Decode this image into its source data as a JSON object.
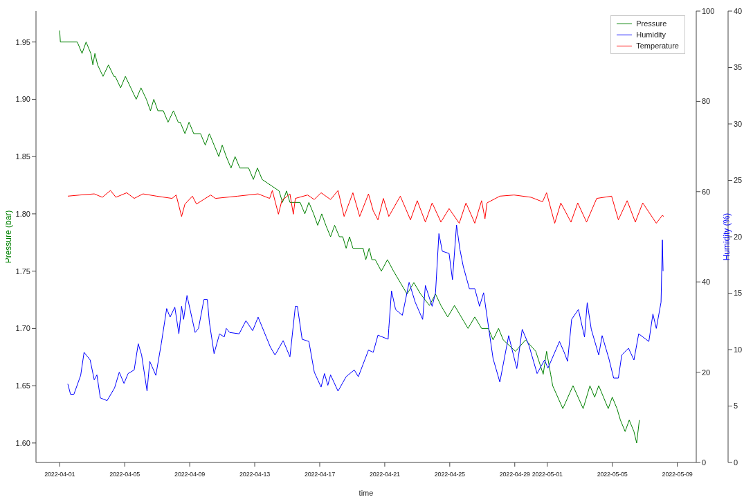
{
  "chart_data": {
    "type": "line",
    "xlabel": "time",
    "ylabel": "Pressure (bar)",
    "y2label": "Humidity (%)",
    "xlim": [
      "2022-03-30T13:00",
      "2022-05-10T04:00"
    ],
    "xticks": [
      "2022-04-01",
      "2022-04-05",
      "2022-04-09",
      "2022-04-13",
      "2022-04-17",
      "2022-04-21",
      "2022-04-25",
      "2022-04-29",
      "2022-05-01",
      "2022-05-05",
      "2022-05-09"
    ],
    "ylim": [
      1.583,
      1.977
    ],
    "yticks": [
      {
        "value": 1.6,
        "label": "1.60"
      },
      {
        "value": 1.65,
        "label": "1.65"
      },
      {
        "value": 1.7,
        "label": "1.70"
      },
      {
        "value": 1.75,
        "label": "1.75"
      },
      {
        "value": 1.8,
        "label": "1.80"
      },
      {
        "value": 1.85,
        "label": "1.85"
      },
      {
        "value": 1.9,
        "label": "1.90"
      },
      {
        "value": 1.95,
        "label": "1.95"
      }
    ],
    "y2lim": [
      0,
      100
    ],
    "y2ticks": [
      0,
      20,
      40,
      60,
      80,
      100
    ],
    "y3lim": [
      0,
      40
    ],
    "y3ticks": [
      0,
      5,
      10,
      15,
      20,
      25,
      30,
      35,
      40
    ],
    "legend": "top right",
    "series": [
      {
        "name": "Pressure",
        "color": "#008000",
        "axis": "y",
        "x": [
          "2022-04-01T00:00",
          "2022-04-01T01:00",
          "2022-04-02T02:00",
          "2022-04-02T09:00",
          "2022-04-02T15:00",
          "2022-04-02T22:00",
          "2022-04-03T01:00",
          "2022-04-03T04:00",
          "2022-04-03T08:00",
          "2022-04-03T16:00",
          "2022-04-04T00:00",
          "2022-04-04T08:00",
          "2022-04-04T10:00",
          "2022-04-04T18:00",
          "2022-04-05T01:00",
          "2022-04-05T09:00",
          "2022-04-05T17:00",
          "2022-04-06T00:00",
          "2022-04-06T08:00",
          "2022-04-06T14:00",
          "2022-04-06T19:00",
          "2022-04-07T01:00",
          "2022-04-07T09:00",
          "2022-04-07T16:00",
          "2022-04-08T00:00",
          "2022-04-08T07:00",
          "2022-04-08T10:00",
          "2022-04-08T17:00",
          "2022-04-08T23:00",
          "2022-04-09T06:00",
          "2022-04-09T16:00",
          "2022-04-09T23:00",
          "2022-04-10T05:00",
          "2022-04-10T12:00",
          "2022-04-10T19:00",
          "2022-04-11T00:00",
          "2022-04-11T06:00",
          "2022-04-11T13:00",
          "2022-04-11T19:00",
          "2022-04-12T02:00",
          "2022-04-12T15:00",
          "2022-04-12T22:00",
          "2022-04-13T04:00",
          "2022-04-13T11:00",
          "2022-04-14T12:00",
          "2022-04-14T17:00",
          "2022-04-14T23:00",
          "2022-04-15T04:00",
          "2022-04-15T19:00",
          "2022-04-16T02:00",
          "2022-04-16T08:00",
          "2022-04-16T15:00",
          "2022-04-16T21:00",
          "2022-04-17T03:00",
          "2022-04-17T09:00",
          "2022-04-17T16:00",
          "2022-04-17T22:00",
          "2022-04-18T05:00",
          "2022-04-18T10:00",
          "2022-04-18T15:00",
          "2022-04-18T20:00",
          "2022-04-19T01:00",
          "2022-04-19T16:00",
          "2022-04-19T20:00",
          "2022-04-20T01:00",
          "2022-04-20T05:00",
          "2022-04-20T10:00",
          "2022-04-20T19:00",
          "2022-04-21T04:00",
          "2022-04-21T13:00",
          "2022-04-21T23:00",
          "2022-04-22T09:00",
          "2022-04-22T19:00",
          "2022-04-23T05:00",
          "2022-04-23T18:00",
          "2022-04-24T03:00",
          "2022-04-24T11:00",
          "2022-04-24T21:00",
          "2022-04-25T07:00",
          "2022-04-25T17:00",
          "2022-04-26T03:00",
          "2022-04-26T13:00",
          "2022-04-26T23:00",
          "2022-04-27T09:00",
          "2022-04-27T16:00",
          "2022-04-28T00:00",
          "2022-04-28T07:00",
          "2022-04-29T01:00",
          "2022-04-29T16:00",
          "2022-04-30T07:00",
          "2022-04-30T18:00",
          "2022-04-30T23:00",
          "2022-05-01T05:00",
          "2022-05-01T08:00",
          "2022-05-01T23:00",
          "2022-05-02T14:00",
          "2022-05-03T05:00",
          "2022-05-03T15:00",
          "2022-05-03T22:00",
          "2022-05-04T04:00",
          "2022-05-04T11:00",
          "2022-05-04T18:00",
          "2022-05-05T00:00",
          "2022-05-05T07:00",
          "2022-05-05T12:00",
          "2022-05-05T19:00",
          "2022-05-06T01:00",
          "2022-05-06T08:00",
          "2022-05-06T12:00",
          "2022-05-06T16:00"
        ],
        "values": [
          1.96,
          1.95,
          1.95,
          1.94,
          1.95,
          1.94,
          1.93,
          1.94,
          1.93,
          1.92,
          1.93,
          1.92,
          1.92,
          1.91,
          1.92,
          1.91,
          1.9,
          1.91,
          1.9,
          1.89,
          1.9,
          1.89,
          1.89,
          1.88,
          1.89,
          1.88,
          1.88,
          1.87,
          1.88,
          1.87,
          1.87,
          1.86,
          1.87,
          1.86,
          1.85,
          1.86,
          1.85,
          1.84,
          1.85,
          1.84,
          1.84,
          1.83,
          1.84,
          1.83,
          1.82,
          1.81,
          1.82,
          1.81,
          1.81,
          1.8,
          1.81,
          1.8,
          1.79,
          1.8,
          1.79,
          1.78,
          1.79,
          1.78,
          1.78,
          1.77,
          1.78,
          1.77,
          1.77,
          1.76,
          1.77,
          1.76,
          1.76,
          1.75,
          1.76,
          1.75,
          1.74,
          1.73,
          1.74,
          1.73,
          1.72,
          1.73,
          1.72,
          1.71,
          1.72,
          1.71,
          1.7,
          1.71,
          1.7,
          1.7,
          1.69,
          1.7,
          1.69,
          1.68,
          1.69,
          1.68,
          1.66,
          1.68,
          1.66,
          1.65,
          1.63,
          1.65,
          1.63,
          1.65,
          1.64,
          1.65,
          1.64,
          1.63,
          1.64,
          1.63,
          1.62,
          1.61,
          1.62,
          1.61,
          1.6,
          1.62
        ]
      },
      {
        "name": "Humidity",
        "color": "#0000ff",
        "axis": "y2",
        "x": [
          "2022-04-01T12:00",
          "2022-04-01T16:00",
          "2022-04-01T21:00",
          "2022-04-02T07:00",
          "2022-04-02T12:00",
          "2022-04-02T21:00",
          "2022-04-03T03:00",
          "2022-04-03T07:00",
          "2022-04-03T12:00",
          "2022-04-03T22:00",
          "2022-04-04T09:00",
          "2022-04-04T16:00",
          "2022-04-04T23:00",
          "2022-04-05T05:00",
          "2022-04-05T14:00",
          "2022-04-05T20:00",
          "2022-04-06T01:00",
          "2022-04-06T09:00",
          "2022-04-06T13:00",
          "2022-04-06T22:00",
          "2022-04-07T06:00",
          "2022-04-07T14:00",
          "2022-04-07T19:00",
          "2022-04-08T02:00",
          "2022-04-08T08:00",
          "2022-04-08T12:00",
          "2022-04-08T15:00",
          "2022-04-08T20:00",
          "2022-04-09T08:00",
          "2022-04-09T13:00",
          "2022-04-09T21:00",
          "2022-04-10T02:00",
          "2022-04-10T05:00",
          "2022-04-10T12:00",
          "2022-04-10T20:00",
          "2022-04-11T03:00",
          "2022-04-11T06:00",
          "2022-04-11T11:00",
          "2022-04-12T01:00",
          "2022-04-12T11:00",
          "2022-04-12T21:00",
          "2022-04-13T05:00",
          "2022-04-13T23:00",
          "2022-04-14T06:00",
          "2022-04-14T18:00",
          "2022-04-15T04:00",
          "2022-04-15T12:00",
          "2022-04-15T15:00",
          "2022-04-15T22:00",
          "2022-04-16T08:00",
          "2022-04-16T16:00",
          "2022-04-17T02:00",
          "2022-04-17T07:00",
          "2022-04-17T12:00",
          "2022-04-17T16:00",
          "2022-04-18T03:00",
          "2022-04-18T15:00",
          "2022-04-19T03:00",
          "2022-04-19T09:00",
          "2022-04-20T00:00",
          "2022-04-20T07:00",
          "2022-04-20T14:00",
          "2022-04-21T05:00",
          "2022-04-21T06:00",
          "2022-04-21T10:00",
          "2022-04-21T16:00",
          "2022-04-22T02:00",
          "2022-04-22T12:00",
          "2022-04-22T21:00",
          "2022-04-23T08:00",
          "2022-04-23T12:00",
          "2022-04-23T22:00",
          "2022-04-24T03:00",
          "2022-04-24T08:00",
          "2022-04-24T13:00",
          "2022-04-24T23:00",
          "2022-04-25T04:00",
          "2022-04-25T10:00",
          "2022-04-25T15:00",
          "2022-04-25T20:00",
          "2022-04-26T05:00",
          "2022-04-26T13:00",
          "2022-04-26T20:00",
          "2022-04-27T02:00",
          "2022-04-27T16:00",
          "2022-04-28T02:00",
          "2022-04-28T15:00",
          "2022-04-29T03:00",
          "2022-04-29T11:00",
          "2022-04-29T21:00",
          "2022-04-30T09:00",
          "2022-04-30T20:00",
          "2022-05-01T01:00",
          "2022-05-01T18:00",
          "2022-05-02T01:00",
          "2022-05-02T06:00",
          "2022-05-02T12:00",
          "2022-05-02T22:00",
          "2022-05-03T07:00",
          "2022-05-03T11:00",
          "2022-05-03T17:00",
          "2022-05-04T04:00",
          "2022-05-04T09:00",
          "2022-05-04T19:00",
          "2022-05-05T02:00",
          "2022-05-05T09:00",
          "2022-05-05T14:00",
          "2022-05-06T00:00",
          "2022-05-06T08:00",
          "2022-05-06T15:00",
          "2022-05-07T06:00",
          "2022-05-07T12:00",
          "2022-05-07T17:00",
          "2022-05-08T00:00",
          "2022-05-08T02:00",
          "2022-05-08T03:00"
        ],
        "values": [
          17.4,
          15.1,
          15.1,
          19.3,
          24.4,
          22.7,
          18.3,
          19.4,
          14.3,
          13.7,
          16.5,
          20.0,
          17.5,
          19.7,
          20.5,
          26.3,
          23.8,
          15.8,
          22.4,
          19.3,
          26.3,
          34.1,
          32.2,
          34.4,
          28.5,
          34.6,
          31.7,
          37.0,
          28.8,
          29.7,
          36.1,
          36.1,
          31.1,
          24.1,
          28.5,
          27.8,
          29.7,
          28.8,
          28.5,
          31.4,
          29.2,
          32.2,
          25.6,
          23.8,
          27.0,
          23.4,
          34.6,
          34.6,
          27.3,
          26.8,
          20.0,
          16.7,
          19.7,
          17.1,
          19.4,
          15.8,
          19.0,
          20.5,
          19.0,
          24.9,
          24.4,
          28.2,
          27.3,
          29.7,
          38.0,
          33.9,
          32.6,
          39.9,
          35.5,
          31.7,
          39.2,
          34.6,
          37.6,
          50.7,
          46.8,
          46.3,
          40.5,
          52.6,
          47.2,
          43.4,
          38.5,
          38.5,
          34.6,
          37.6,
          23.0,
          17.8,
          28.1,
          20.8,
          29.5,
          25.9,
          19.7,
          22.7,
          20.9,
          26.8,
          24.4,
          22.4,
          31.7,
          33.9,
          27.8,
          35.4,
          29.5,
          23.8,
          28.1,
          23.0,
          18.7,
          18.7,
          23.8,
          25.3,
          22.7,
          28.5,
          26.8,
          32.9,
          29.7,
          35.5,
          49.3,
          42.4
        ]
      },
      {
        "name": "Temperature",
        "color": "#ff0000",
        "axis": "y3",
        "x": [
          "2022-04-01T12:00",
          "2022-04-02T06:00",
          "2022-04-03T03:00",
          "2022-04-03T15:00",
          "2022-04-04T03:00",
          "2022-04-04T11:00",
          "2022-04-05T03:00",
          "2022-04-05T14:00",
          "2022-04-06T03:00",
          "2022-04-06T23:00",
          "2022-04-07T22:00",
          "2022-04-08T04:00",
          "2022-04-08T12:00",
          "2022-04-08T17:00",
          "2022-04-09T04:00",
          "2022-04-09T10:00",
          "2022-04-10T07:00",
          "2022-04-10T14:00",
          "2022-04-11T23:00",
          "2022-04-13T05:00",
          "2022-04-13T22:00",
          "2022-04-14T02:00",
          "2022-04-14T11:00",
          "2022-04-14T16:00",
          "2022-04-15T04:00",
          "2022-04-15T09:00",
          "2022-04-15T12:00",
          "2022-04-16T06:00",
          "2022-04-16T16:00",
          "2022-04-17T02:00",
          "2022-04-17T16:00",
          "2022-04-18T03:00",
          "2022-04-18T12:00",
          "2022-04-19T01:00",
          "2022-04-19T11:00",
          "2022-04-20T00:00",
          "2022-04-20T07:00",
          "2022-04-20T14:00",
          "2022-04-20T22:00",
          "2022-04-21T06:00",
          "2022-04-21T23:00",
          "2022-04-22T14:00",
          "2022-04-23T00:00",
          "2022-04-23T12:00",
          "2022-04-23T22:00",
          "2022-04-24T11:00",
          "2022-04-24T23:00",
          "2022-04-25T14:00",
          "2022-04-26T00:00",
          "2022-04-26T13:00",
          "2022-04-26T23:00",
          "2022-04-27T04:00",
          "2022-04-27T07:00",
          "2022-04-28T02:00",
          "2022-04-28T23:00",
          "2022-04-30T00:00",
          "2022-04-30T17:00",
          "2022-04-30T23:00",
          "2022-05-01T11:00",
          "2022-05-01T20:00",
          "2022-05-02T11:00",
          "2022-05-02T21:00",
          "2022-05-03T10:00",
          "2022-05-04T01:00",
          "2022-05-04T23:00",
          "2022-05-05T09:00",
          "2022-05-05T22:00",
          "2022-05-06T10:00",
          "2022-05-06T21:00",
          "2022-05-07T17:00",
          "2022-05-08T02:00",
          "2022-05-08T04:00"
        ],
        "values": [
          23.6,
          23.7,
          23.8,
          23.5,
          24.1,
          23.5,
          23.9,
          23.4,
          23.8,
          23.6,
          23.4,
          23.7,
          21.8,
          22.9,
          23.6,
          22.9,
          23.7,
          23.4,
          23.6,
          23.8,
          23.4,
          24.1,
          22.0,
          23.2,
          23.8,
          22.0,
          23.4,
          23.7,
          23.3,
          23.9,
          23.3,
          24.1,
          21.8,
          23.9,
          21.8,
          23.8,
          22.3,
          21.5,
          23.4,
          21.8,
          23.6,
          21.5,
          23.2,
          21.3,
          23.0,
          21.3,
          22.5,
          21.2,
          23.0,
          21.2,
          23.2,
          21.6,
          23.0,
          23.6,
          23.7,
          23.5,
          23.1,
          23.9,
          21.2,
          23.0,
          21.3,
          23.0,
          21.3,
          23.4,
          23.6,
          21.5,
          23.2,
          21.3,
          23.0,
          21.2,
          21.9,
          21.8
        ]
      }
    ]
  }
}
